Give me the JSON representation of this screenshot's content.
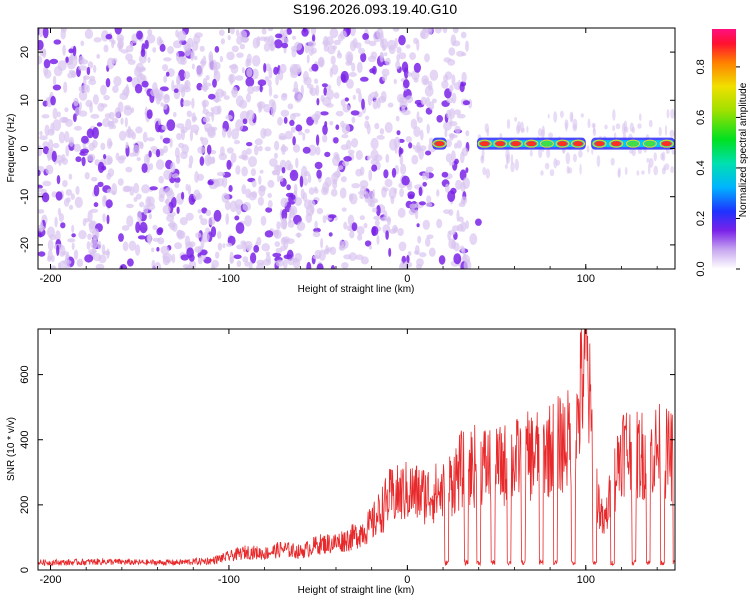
{
  "figure": {
    "title": "S196.2026.093.19.40.G10"
  },
  "chart_data": [
    {
      "type": "heatmap",
      "xlabel": "Height of straight line (km)",
      "ylabel": "Frequency (Hz)",
      "xlim": [
        -207,
        150
      ],
      "ylim": [
        -25,
        25
      ],
      "xticks": [
        -200,
        -100,
        0,
        100
      ],
      "yticks": [
        -20,
        -10,
        0,
        10,
        20
      ],
      "colorbar": {
        "label": "Normalized spectral amplitude",
        "range": [
          0.0,
          0.95
        ],
        "ticks": [
          0.0,
          0.2,
          0.4,
          0.6,
          0.8
        ],
        "tick_labels": [
          "0.0",
          "0.2",
          "0.4",
          "0.6",
          "0.8"
        ]
      },
      "colors": {
        "noise_light": "#d8c4f0",
        "noise_dark": "#7a22e8",
        "peak": "#ff2020"
      },
      "ridge": {
        "frequency": 1,
        "segments": [
          {
            "from": 14,
            "to": 22,
            "amplitude": 0.85
          },
          {
            "from": 39,
            "to": 100,
            "amplitude": 0.8
          },
          {
            "from": 103,
            "to": 150,
            "amplitude": 0.65
          }
        ]
      }
    },
    {
      "type": "line",
      "xlabel": "Height of straight line (km)",
      "ylabel": "SNR (10 * v/v)",
      "xlim": [
        -207,
        150
      ],
      "ylim": [
        0,
        740
      ],
      "xticks": [
        -200,
        -100,
        0,
        100
      ],
      "yticks": [
        0,
        200,
        400,
        600
      ],
      "color": "#e8292b",
      "x": [
        -207,
        -190,
        -170,
        -150,
        -130,
        -110,
        -100,
        -90,
        -80,
        -70,
        -60,
        -50,
        -40,
        -30,
        -20,
        -10,
        0,
        10,
        20,
        30,
        40,
        50,
        60,
        70,
        80,
        90,
        95,
        100,
        105,
        110,
        120,
        130,
        140,
        150
      ],
      "y": [
        25,
        25,
        28,
        25,
        25,
        30,
        45,
        60,
        55,
        70,
        60,
        85,
        90,
        110,
        150,
        240,
        260,
        250,
        260,
        330,
        350,
        340,
        360,
        380,
        400,
        430,
        470,
        740,
        300,
        140,
        410,
        380,
        400,
        370
      ],
      "dropouts": [
        22,
        33,
        40,
        48,
        57,
        65,
        75,
        83,
        93,
        105,
        115,
        127,
        135,
        143,
        150
      ]
    }
  ]
}
